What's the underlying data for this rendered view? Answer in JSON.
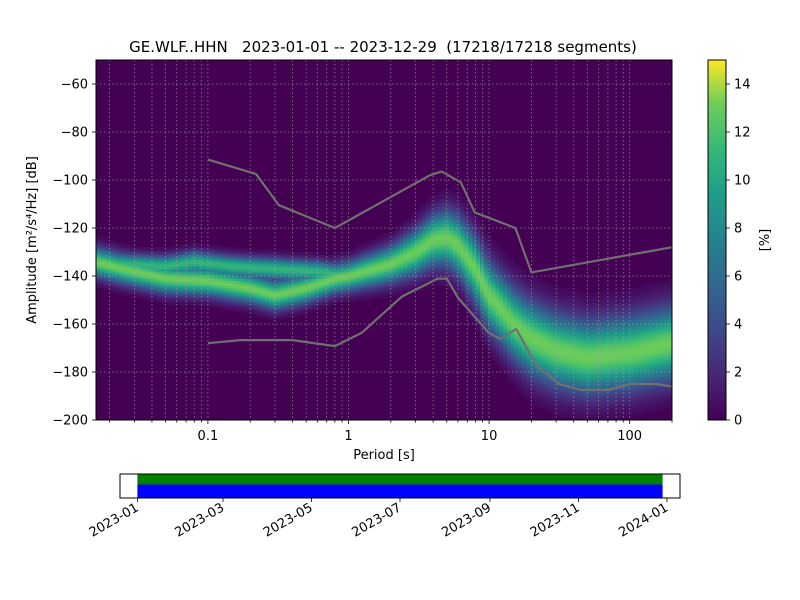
{
  "chart_data": [
    {
      "type": "heatmap",
      "title": "GE.WLF..HHN   2023-01-01 -- 2023-12-29  (17218/17218 segments)",
      "xlabel": "Period [s]",
      "ylabel": "Amplitude [m²/s⁴/Hz] [dB]",
      "x_scale": "log",
      "xlim": [
        0.016,
        200
      ],
      "ylim": [
        -200,
        -50
      ],
      "x_ticks": [
        {
          "value": 0.1,
          "label": "0.1"
        },
        {
          "value": 1,
          "label": "1"
        },
        {
          "value": 10,
          "label": "10"
        },
        {
          "value": 100,
          "label": "100"
        }
      ],
      "y_ticks": [
        {
          "value": -60,
          "label": "−60"
        },
        {
          "value": -80,
          "label": "−80"
        },
        {
          "value": -100,
          "label": "−100"
        },
        {
          "value": -120,
          "label": "−120"
        },
        {
          "value": -140,
          "label": "−140"
        },
        {
          "value": -160,
          "label": "−160"
        },
        {
          "value": -180,
          "label": "−180"
        },
        {
          "value": -200,
          "label": "−200"
        }
      ],
      "grid": true,
      "colormap": "viridis",
      "colorbar": {
        "label": "[%]",
        "range": [
          0,
          15
        ],
        "ticks": [
          {
            "value": 0,
            "label": "0"
          },
          {
            "value": 2,
            "label": "2"
          },
          {
            "value": 4,
            "label": "4"
          },
          {
            "value": 6,
            "label": "6"
          },
          {
            "value": 8,
            "label": "8"
          },
          {
            "value": 10,
            "label": "10"
          },
          {
            "value": 12,
            "label": "12"
          },
          {
            "value": 14,
            "label": "14"
          }
        ]
      },
      "noise_models": {
        "color": "#707070",
        "high": [
          [
            0.1,
            -91.5
          ],
          [
            0.22,
            -97.5
          ],
          [
            0.32,
            -110.5
          ],
          [
            0.8,
            -120
          ],
          [
            3.8,
            -98
          ],
          [
            4.6,
            -96.5
          ],
          [
            6.3,
            -101
          ],
          [
            7.9,
            -113.5
          ],
          [
            15.4,
            -120
          ],
          [
            20,
            -138.5
          ],
          [
            200,
            -128
          ]
        ],
        "low": [
          [
            0.1,
            -168
          ],
          [
            0.17,
            -166.7
          ],
          [
            0.4,
            -166.7
          ],
          [
            0.8,
            -169.2
          ],
          [
            1.24,
            -163.7
          ],
          [
            2.4,
            -148.6
          ],
          [
            4.3,
            -141.1
          ],
          [
            5,
            -141.1
          ],
          [
            6,
            -149
          ],
          [
            10,
            -163.8
          ],
          [
            12,
            -166.2
          ],
          [
            15.6,
            -162.1
          ],
          [
            21.9,
            -177.5
          ],
          [
            31.6,
            -185
          ],
          [
            45,
            -187.5
          ],
          [
            70,
            -187.5
          ],
          [
            101,
            -185
          ],
          [
            154,
            -185
          ],
          [
            200,
            -186
          ]
        ]
      },
      "density_bands": [
        {
          "center": [
            [
              0.016,
              -134
            ],
            [
              0.025,
              -137
            ],
            [
              0.05,
              -141
            ],
            [
              0.1,
              -142
            ],
            [
              0.2,
              -145
            ],
            [
              0.3,
              -148
            ],
            [
              0.5,
              -145
            ],
            [
              0.8,
              -141
            ],
            [
              1,
              -140
            ],
            [
              2,
              -135
            ],
            [
              3,
              -130
            ],
            [
              4,
              -125
            ],
            [
              5,
              -124
            ],
            [
              6,
              -127
            ],
            [
              8,
              -137
            ],
            [
              10,
              -148
            ],
            [
              15,
              -160
            ],
            [
              20,
              -166
            ],
            [
              30,
              -171
            ],
            [
              50,
              -174
            ],
            [
              100,
              -172
            ],
            [
              200,
              -168
            ]
          ],
          "width": [
            [
              0.016,
              4
            ],
            [
              0.1,
              4
            ],
            [
              1,
              4
            ],
            [
              2,
              5
            ],
            [
              4,
              7
            ],
            [
              8,
              9
            ],
            [
              20,
              10
            ],
            [
              200,
              10
            ]
          ],
          "peak": 13
        },
        {
          "center": [
            [
              0.016,
              -134
            ],
            [
              0.025,
              -135
            ],
            [
              0.05,
              -136
            ],
            [
              0.08,
              -134
            ],
            [
              0.15,
              -136
            ],
            [
              0.3,
              -137
            ],
            [
              0.6,
              -138
            ],
            [
              1,
              -140
            ]
          ],
          "width": [
            [
              0.016,
              3
            ],
            [
              1,
              3
            ]
          ],
          "peak": 11
        }
      ]
    },
    {
      "type": "bar",
      "title": "",
      "x_axis": "date",
      "xlim": [
        "2022-12-20",
        "2024-01-10"
      ],
      "x_ticks": [
        "2023-01",
        "2023-03",
        "2023-05",
        "2023-07",
        "2023-09",
        "2023-11",
        "2024-01"
      ],
      "coverage": {
        "start": "2023-01-01",
        "end": "2023-12-29"
      },
      "series": [
        {
          "color": "#008000"
        },
        {
          "color": "#0000ff"
        }
      ]
    }
  ]
}
